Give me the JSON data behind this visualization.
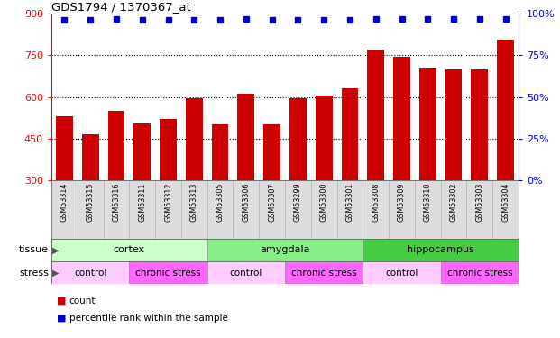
{
  "title": "GDS1794 / 1370367_at",
  "samples": [
    "GSM53314",
    "GSM53315",
    "GSM53316",
    "GSM53311",
    "GSM53312",
    "GSM53313",
    "GSM53305",
    "GSM53306",
    "GSM53307",
    "GSM53299",
    "GSM53300",
    "GSM53301",
    "GSM53308",
    "GSM53309",
    "GSM53310",
    "GSM53302",
    "GSM53303",
    "GSM53304"
  ],
  "counts": [
    530,
    465,
    550,
    505,
    520,
    595,
    500,
    610,
    500,
    595,
    605,
    630,
    770,
    745,
    705,
    700,
    700,
    805
  ],
  "percentiles": [
    96,
    96,
    97,
    96,
    96,
    96,
    96,
    97,
    96,
    96,
    96,
    96,
    97,
    97,
    97,
    97,
    97,
    97
  ],
  "bar_color": "#cc0000",
  "dot_color": "#0000cc",
  "ylim_left": [
    300,
    900
  ],
  "ylim_right": [
    0,
    100
  ],
  "yticks_left": [
    300,
    450,
    600,
    750,
    900
  ],
  "yticks_right": [
    0,
    25,
    50,
    75,
    100
  ],
  "tissue_groups": [
    {
      "label": "cortex",
      "start": 0,
      "end": 6,
      "color": "#ccffcc"
    },
    {
      "label": "amygdala",
      "start": 6,
      "end": 12,
      "color": "#88ee88"
    },
    {
      "label": "hippocampus",
      "start": 12,
      "end": 18,
      "color": "#44cc44"
    }
  ],
  "stress_groups": [
    {
      "label": "control",
      "start": 0,
      "end": 3,
      "color": "#ffccff"
    },
    {
      "label": "chronic stress",
      "start": 3,
      "end": 6,
      "color": "#ff66ff"
    },
    {
      "label": "control",
      "start": 6,
      "end": 9,
      "color": "#ffccff"
    },
    {
      "label": "chronic stress",
      "start": 9,
      "end": 12,
      "color": "#ff66ff"
    },
    {
      "label": "control",
      "start": 12,
      "end": 15,
      "color": "#ffccff"
    },
    {
      "label": "chronic stress",
      "start": 15,
      "end": 18,
      "color": "#ff66ff"
    }
  ],
  "legend_count_label": "count",
  "legend_pct_label": "percentile rank within the sample",
  "tissue_label": "tissue",
  "stress_label": "stress"
}
